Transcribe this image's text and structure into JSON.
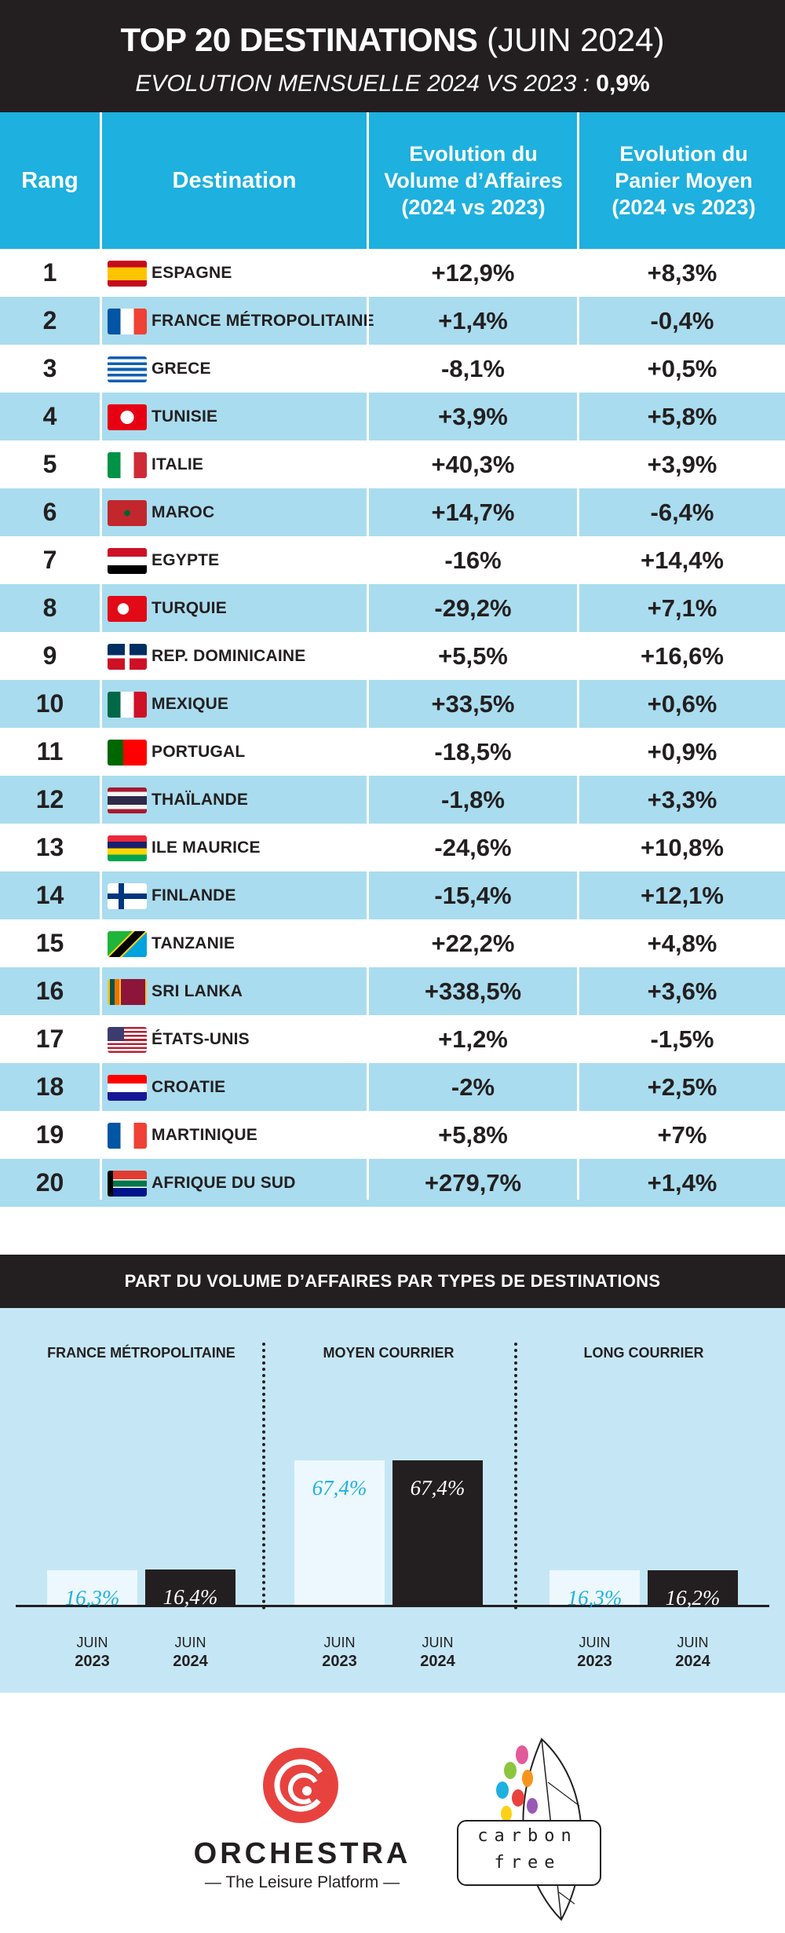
{
  "header": {
    "title_bold": "TOP 20 DESTINATIONS",
    "title_rest": " (JUIN 2024)",
    "subtitle": "EVOLUTION MENSUELLE 2024 VS 2023 : ",
    "subtitle_value": "0,9%"
  },
  "table": {
    "columns": [
      "Rang",
      "Destination",
      "Evolution du Volume d’Affaires (2024 vs 2023)",
      "Evolution du Panier Moyen (2024 vs 2023)"
    ],
    "rows": [
      {
        "rank": "1",
        "name": "ESPAGNE",
        "volume": "+12,9%",
        "panier": "+8,3%"
      },
      {
        "rank": "2",
        "name": "FRANCE MÉTROPOLITAINE",
        "volume": "+1,4%",
        "panier": "-0,4%"
      },
      {
        "rank": "3",
        "name": "GRECE",
        "volume": "-8,1%",
        "panier": "+0,5%"
      },
      {
        "rank": "4",
        "name": "TUNISIE",
        "volume": "+3,9%",
        "panier": "+5,8%"
      },
      {
        "rank": "5",
        "name": "ITALIE",
        "volume": "+40,3%",
        "panier": "+3,9%"
      },
      {
        "rank": "6",
        "name": "MAROC",
        "volume": "+14,7%",
        "panier": "-6,4%"
      },
      {
        "rank": "7",
        "name": "EGYPTE",
        "volume": "-16%",
        "panier": "+14,4%"
      },
      {
        "rank": "8",
        "name": "TURQUIE",
        "volume": "-29,2%",
        "panier": "+7,1%"
      },
      {
        "rank": "9",
        "name": "REP. DOMINICAINE",
        "volume": "+5,5%",
        "panier": "+16,6%"
      },
      {
        "rank": "10",
        "name": "MEXIQUE",
        "volume": "+33,5%",
        "panier": "+0,6%"
      },
      {
        "rank": "11",
        "name": "PORTUGAL",
        "volume": "-18,5%",
        "panier": "+0,9%"
      },
      {
        "rank": "12",
        "name": "THAÏLANDE",
        "volume": "-1,8%",
        "panier": "+3,3%"
      },
      {
        "rank": "13",
        "name": "ILE MAURICE",
        "volume": "-24,6%",
        "panier": "+10,8%"
      },
      {
        "rank": "14",
        "name": "FINLANDE",
        "volume": "-15,4%",
        "panier": "+12,1%"
      },
      {
        "rank": "15",
        "name": "TANZANIE",
        "volume": "+22,2%",
        "panier": "+4,8%"
      },
      {
        "rank": "16",
        "name": "SRI LANKA",
        "volume": "+338,5%",
        "panier": "+3,6%"
      },
      {
        "rank": "17",
        "name": "ÉTATS-UNIS",
        "volume": "+1,2%",
        "panier": "-1,5%"
      },
      {
        "rank": "18",
        "name": "CROATIE",
        "volume": "-2%",
        "panier": "+2,5%"
      },
      {
        "rank": "19",
        "name": "MARTINIQUE",
        "volume": "+5,8%",
        "panier": "+7%"
      },
      {
        "rank": "20",
        "name": "AFRIQUE DU SUD",
        "volume": "+279,7%",
        "panier": "+1,4%"
      }
    ]
  },
  "flags": [
    {
      "icon": "spain-flag-icon",
      "css": "linear-gradient(#c60b1e 0 25%, #ffc400 25% 75%, #c60b1e 75%)"
    },
    {
      "icon": "france-flag-icon",
      "css": "linear-gradient(90deg, #0055a4 0 33%, #ffffff 33% 67%, #ef4135 67%)"
    },
    {
      "icon": "greece-flag-icon",
      "css": "repeating-linear-gradient(#0d5eaf 0 11.1%, #ffffff 11.1% 22.2%)"
    },
    {
      "icon": "tunisia-flag-icon",
      "css": "radial-gradient(circle at 50% 50%, #ffffff 0 28%, #e70013 29%)"
    },
    {
      "icon": "italy-flag-icon",
      "css": "linear-gradient(90deg, #009246 0 33%, #ffffff 33% 67%, #ce2b37 67%)"
    },
    {
      "icon": "morocco-flag-icon",
      "css": "radial-gradient(circle at 50% 50%, #006233 0 12%, #c1272d 14%)"
    },
    {
      "icon": "egypt-flag-icon",
      "css": "linear-gradient(#ce1126 0 33%, #ffffff 33% 67%, #000000 67%)"
    },
    {
      "icon": "turkey-flag-icon",
      "css": "radial-gradient(circle at 40% 50%, #ffffff 0 20%, #e30a17 22%)"
    },
    {
      "icon": "dominican-republic-flag-icon",
      "css": "linear-gradient(90deg, transparent 0 44%, #ffffff 44% 56%, transparent 56%), linear-gradient(#002d62 0 44%, #ffffff 44% 56%, #ce1126 56%)"
    },
    {
      "icon": "mexico-flag-icon",
      "css": "linear-gradient(90deg, #006847 0 33%, #ffffff 33% 67%, #ce1126 67%)"
    },
    {
      "icon": "portugal-flag-icon",
      "css": "linear-gradient(90deg, #006600 0 40%, #ff0000 40%)"
    },
    {
      "icon": "thailand-flag-icon",
      "css": "linear-gradient(#a51931 0 16%, #f4f5f8 16% 33%, #2d2a4a 33% 67%, #f4f5f8 67% 84%, #a51931 84%)"
    },
    {
      "icon": "mauritius-flag-icon",
      "css": "linear-gradient(#ea2839 0 25%, #1a206d 25% 50%, #ffd500 50% 75%, #00a551 75%)"
    },
    {
      "icon": "finland-flag-icon",
      "css": "linear-gradient(90deg, transparent 0 28%, #003580 28% 42%, transparent 42%), linear-gradient(#ffffff 0 40%, #003580 40% 60%, #ffffff 60%)"
    },
    {
      "icon": "tanzania-flag-icon",
      "css": "linear-gradient(135deg, #1eb53a 0 38%, #fcd116 38% 42%, #000000 42% 58%, #fcd116 58% 62%, #00a3dd 62%)"
    },
    {
      "icon": "sri-lanka-flag-icon",
      "css": "linear-gradient(90deg, #ffbe29 0 6%, #00534e 6% 18%, #eb7400 18% 30%, #ffbe29 30% 34%, #8d153a 34% 96%, #ffbe29 96%)"
    },
    {
      "icon": "usa-flag-icon",
      "css": "linear-gradient(90deg, #3c3b6e 0 42%, transparent 42%) 0 0 / 100% 54% no-repeat, repeating-linear-gradient(#b22234 0 7.7%, #ffffff 7.7% 15.4%)"
    },
    {
      "icon": "croatia-flag-icon",
      "css": "linear-gradient(#ff0000 0 33%, #ffffff 33% 67%, #171796 67%)"
    },
    {
      "icon": "martinique-flag-icon",
      "css": "linear-gradient(90deg, #0055a4 0 33%, #ffffff 33% 67%, #ef4135 67%)"
    },
    {
      "icon": "south-africa-flag-icon",
      "css": "linear-gradient(90deg, #000000 0 14%, transparent 14%), linear-gradient(#e03c31 0 33%, #ffffff 33% 38%, #007749 38% 62%, #ffffff 62% 67%, #001489 67%)"
    }
  ],
  "section2": {
    "title": "PART DU VOLUME D’AFFAIRES PAR TYPES DE DESTINATIONS"
  },
  "chart_data": {
    "type": "bar",
    "title": "PART DU VOLUME D’AFFAIRES PAR TYPES DE DESTINATIONS",
    "groups": [
      "FRANCE MÉTROPOLITAINE",
      "MOYEN COURRIER",
      "LONG COURRIER"
    ],
    "series": [
      {
        "name": "JUIN 2023",
        "values": [
          16.3,
          67.4,
          16.3
        ],
        "labels": [
          "16,3%",
          "67,4%",
          "16,3%"
        ],
        "color": "#ecf8fd"
      },
      {
        "name": "JUIN 2024",
        "values": [
          16.4,
          67.4,
          16.2
        ],
        "labels": [
          "16,4%",
          "67,4%",
          "16,2%"
        ],
        "color": "#231f20"
      }
    ],
    "x_month": "JUIN",
    "x_years": [
      "2023",
      "2024"
    ],
    "ylim": [
      0,
      100
    ]
  },
  "footer": {
    "brand": "ORCHESTRA",
    "tagline": "— The Leisure Platform —",
    "carbon_line1": "carbon",
    "carbon_line2": "free"
  },
  "colors": {
    "header_bg": "#231f20",
    "accent": "#1eb0de",
    "row_alt": "#a9dcee",
    "panel_bg": "#c5e7f5",
    "logo_red": "#e8423f"
  }
}
